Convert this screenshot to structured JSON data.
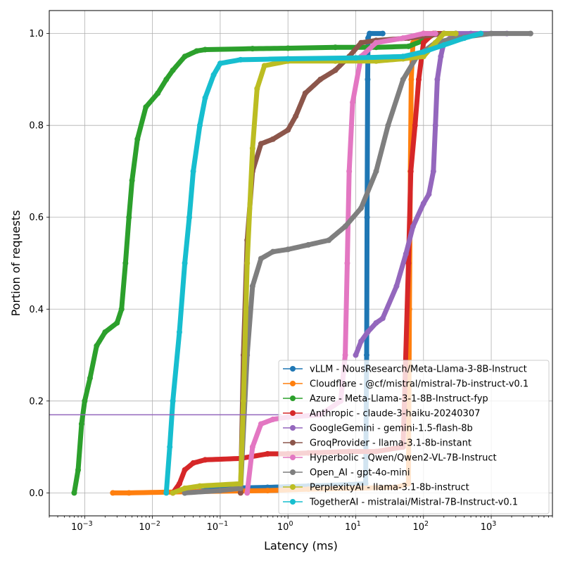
{
  "chart_data": {
    "type": "line",
    "title": "",
    "xlabel": "Latency (ms)",
    "ylabel": "Portion of requests",
    "xscale": "log",
    "xlim": [
      0.0003,
      8000
    ],
    "ylim": [
      -0.05,
      1.05
    ],
    "x_ticks": [
      {
        "value": 0.001,
        "base": "10",
        "exp": "−3"
      },
      {
        "value": 0.01,
        "base": "10",
        "exp": "−2"
      },
      {
        "value": 0.1,
        "base": "10",
        "exp": "−1"
      },
      {
        "value": 1,
        "base": "10",
        "exp": "0"
      },
      {
        "value": 10,
        "base": "10",
        "exp": "1"
      },
      {
        "value": 100,
        "base": "10",
        "exp": "2"
      },
      {
        "value": 1000,
        "base": "10",
        "exp": "3"
      }
    ],
    "y_ticks": [
      {
        "value": 0.0,
        "label": "0.0"
      },
      {
        "value": 0.2,
        "label": "0.2"
      },
      {
        "value": 0.4,
        "label": "0.4"
      },
      {
        "value": 0.6,
        "label": "0.6"
      },
      {
        "value": 0.8,
        "label": "0.8"
      },
      {
        "value": 1.0,
        "label": "1.0"
      }
    ],
    "grid": true,
    "legend_position": "bottom-right",
    "reference_line": {
      "y": 0.17,
      "color": "#9467bd"
    },
    "series": [
      {
        "name": "vLLM - NousResearch/Meta-Llama-3-8B-Instruct",
        "color": "#1f77b4",
        "points": [
          [
            0.03,
            0.0
          ],
          [
            0.06,
            0.005
          ],
          [
            0.12,
            0.01
          ],
          [
            0.5,
            0.012
          ],
          [
            2,
            0.015
          ],
          [
            8,
            0.018
          ],
          [
            14,
            0.02
          ],
          [
            14.5,
            0.3
          ],
          [
            14.7,
            0.6
          ],
          [
            15,
            0.9
          ],
          [
            15.2,
            0.99
          ],
          [
            16,
            1.0
          ],
          [
            25,
            1.0
          ]
        ]
      },
      {
        "name": "Cloudflare - @cf/mistral/mistral-7b-instruct-v0.1",
        "color": "#ff7f0e",
        "points": [
          [
            0.0026,
            0.0
          ],
          [
            0.0045,
            0.0
          ],
          [
            0.05,
            0.003
          ],
          [
            0.5,
            0.005
          ],
          [
            2,
            0.008
          ],
          [
            10,
            0.01
          ],
          [
            40,
            0.012
          ],
          [
            60,
            0.02
          ],
          [
            62,
            0.4
          ],
          [
            64,
            0.7
          ],
          [
            66,
            0.9
          ],
          [
            70,
            0.98
          ],
          [
            100,
            1.0
          ],
          [
            150,
            1.0
          ]
        ]
      },
      {
        "name": "Azure - Meta-Llama-3-1-8B-Instruct-fyp",
        "color": "#2ca02c",
        "points": [
          [
            0.0007,
            0.0
          ],
          [
            0.0008,
            0.05
          ],
          [
            0.0009,
            0.15
          ],
          [
            0.001,
            0.2
          ],
          [
            0.0012,
            0.25
          ],
          [
            0.0015,
            0.32
          ],
          [
            0.002,
            0.35
          ],
          [
            0.003,
            0.37
          ],
          [
            0.0035,
            0.4
          ],
          [
            0.004,
            0.5
          ],
          [
            0.0045,
            0.6
          ],
          [
            0.005,
            0.68
          ],
          [
            0.006,
            0.77
          ],
          [
            0.008,
            0.84
          ],
          [
            0.012,
            0.87
          ],
          [
            0.016,
            0.9
          ],
          [
            0.02,
            0.92
          ],
          [
            0.03,
            0.95
          ],
          [
            0.045,
            0.962
          ],
          [
            0.06,
            0.965
          ],
          [
            0.3,
            0.967
          ],
          [
            1,
            0.968
          ],
          [
            5,
            0.97
          ],
          [
            20,
            0.97
          ],
          [
            60,
            0.972
          ],
          [
            100,
            0.985
          ],
          [
            150,
            1.0
          ],
          [
            200,
            1.0
          ]
        ]
      },
      {
        "name": "Anthropic - claude-3-haiku-20240307",
        "color": "#d62728",
        "points": [
          [
            0.02,
            0.0
          ],
          [
            0.025,
            0.02
          ],
          [
            0.03,
            0.05
          ],
          [
            0.04,
            0.065
          ],
          [
            0.06,
            0.072
          ],
          [
            0.2,
            0.075
          ],
          [
            0.5,
            0.085
          ],
          [
            1,
            0.085
          ],
          [
            2,
            0.087
          ],
          [
            8,
            0.09
          ],
          [
            20,
            0.09
          ],
          [
            50,
            0.1
          ],
          [
            60,
            0.5
          ],
          [
            65,
            0.7
          ],
          [
            75,
            0.8
          ],
          [
            85,
            0.9
          ],
          [
            100,
            0.98
          ],
          [
            140,
            1.0
          ],
          [
            200,
            1.0
          ]
        ]
      },
      {
        "name": "GoogleGemini - gemini-1.5-flash-8b",
        "color": "#9467bd",
        "points": [
          [
            10,
            0.3
          ],
          [
            12,
            0.33
          ],
          [
            15,
            0.35
          ],
          [
            20,
            0.37
          ],
          [
            25,
            0.38
          ],
          [
            40,
            0.45
          ],
          [
            55,
            0.52
          ],
          [
            70,
            0.58
          ],
          [
            100,
            0.63
          ],
          [
            120,
            0.65
          ],
          [
            140,
            0.7
          ],
          [
            150,
            0.8
          ],
          [
            160,
            0.9
          ],
          [
            180,
            0.95
          ],
          [
            200,
            0.98
          ],
          [
            300,
            1.0
          ],
          [
            500,
            1.0
          ],
          [
            1700,
            1.0
          ]
        ]
      },
      {
        "name": "GroqProvider - llama-3.1-8b-instant",
        "color": "#8c564b",
        "points": [
          [
            0.2,
            0.0
          ],
          [
            0.22,
            0.3
          ],
          [
            0.25,
            0.55
          ],
          [
            0.3,
            0.7
          ],
          [
            0.4,
            0.76
          ],
          [
            0.6,
            0.77
          ],
          [
            1,
            0.79
          ],
          [
            1.3,
            0.82
          ],
          [
            1.8,
            0.87
          ],
          [
            3,
            0.9
          ],
          [
            5,
            0.92
          ],
          [
            8,
            0.95
          ],
          [
            12,
            0.98
          ],
          [
            20,
            0.985
          ],
          [
            60,
            0.99
          ],
          [
            200,
            1.0
          ],
          [
            300,
            1.0
          ]
        ]
      },
      {
        "name": "Hyperbolic - Qwen/Qwen2-VL-7B-Instruct",
        "color": "#e377c2",
        "points": [
          [
            0.25,
            0.0
          ],
          [
            0.3,
            0.1
          ],
          [
            0.4,
            0.15
          ],
          [
            0.6,
            0.16
          ],
          [
            1,
            0.165
          ],
          [
            3,
            0.17
          ],
          [
            6,
            0.2
          ],
          [
            7,
            0.3
          ],
          [
            7.5,
            0.5
          ],
          [
            8,
            0.7
          ],
          [
            9,
            0.85
          ],
          [
            12,
            0.95
          ],
          [
            20,
            0.98
          ],
          [
            50,
            0.99
          ],
          [
            100,
            1.0
          ],
          [
            150,
            1.0
          ]
        ]
      },
      {
        "name": "Open_AI - gpt-4o-mini",
        "color": "#7f7f7f",
        "points": [
          [
            0.03,
            0.0
          ],
          [
            0.1,
            0.005
          ],
          [
            0.2,
            0.01
          ],
          [
            0.25,
            0.3
          ],
          [
            0.3,
            0.45
          ],
          [
            0.4,
            0.51
          ],
          [
            0.6,
            0.525
          ],
          [
            1,
            0.53
          ],
          [
            2,
            0.54
          ],
          [
            4,
            0.55
          ],
          [
            7,
            0.58
          ],
          [
            12,
            0.62
          ],
          [
            20,
            0.7
          ],
          [
            30,
            0.8
          ],
          [
            50,
            0.9
          ],
          [
            80,
            0.95
          ],
          [
            150,
            0.98
          ],
          [
            300,
            0.99
          ],
          [
            1000,
            1.0
          ],
          [
            3800,
            1.0
          ]
        ]
      },
      {
        "name": "PerplexityAI - llama-3.1-8b-instruct",
        "color": "#bcbd22",
        "points": [
          [
            0.02,
            0.0
          ],
          [
            0.03,
            0.01
          ],
          [
            0.05,
            0.015
          ],
          [
            0.2,
            0.02
          ],
          [
            0.22,
            0.2
          ],
          [
            0.25,
            0.5
          ],
          [
            0.3,
            0.75
          ],
          [
            0.35,
            0.88
          ],
          [
            0.45,
            0.93
          ],
          [
            1,
            0.94
          ],
          [
            5,
            0.94
          ],
          [
            20,
            0.94
          ],
          [
            50,
            0.945
          ],
          [
            100,
            0.95
          ],
          [
            150,
            0.98
          ],
          [
            200,
            1.0
          ],
          [
            300,
            1.0
          ]
        ]
      },
      {
        "name": "TogetherAI - mistralai/Mistral-7B-Instruct-v0.1",
        "color": "#17becf",
        "points": [
          [
            0.016,
            0.0
          ],
          [
            0.018,
            0.1
          ],
          [
            0.02,
            0.2
          ],
          [
            0.025,
            0.35
          ],
          [
            0.03,
            0.5
          ],
          [
            0.035,
            0.6
          ],
          [
            0.04,
            0.7
          ],
          [
            0.05,
            0.8
          ],
          [
            0.06,
            0.86
          ],
          [
            0.08,
            0.91
          ],
          [
            0.1,
            0.935
          ],
          [
            0.2,
            0.943
          ],
          [
            1,
            0.945
          ],
          [
            10,
            0.947
          ],
          [
            50,
            0.95
          ],
          [
            100,
            0.96
          ],
          [
            200,
            0.975
          ],
          [
            400,
            0.99
          ],
          [
            700,
            1.0
          ]
        ]
      }
    ]
  }
}
